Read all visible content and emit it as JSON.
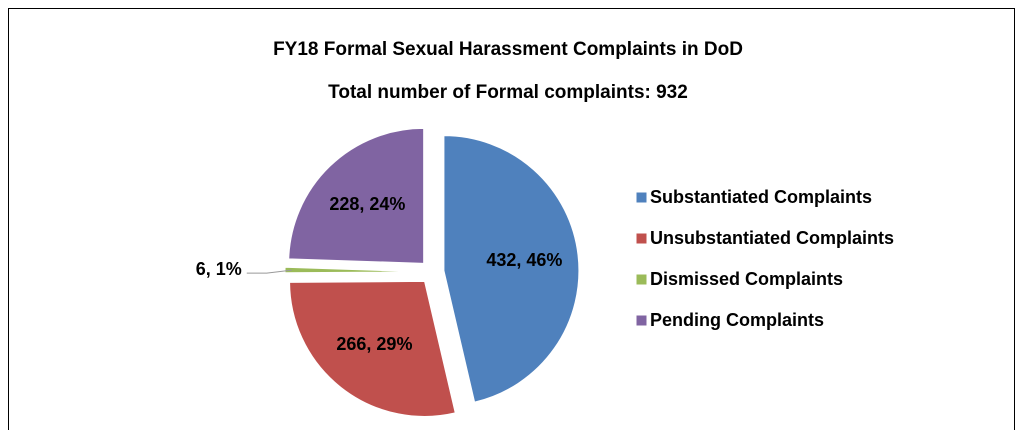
{
  "chart_data": {
    "type": "pie",
    "title": "FY18 Formal Sexual Harassment Complaints in DoD",
    "subtitle": "Total number of Formal complaints: 932",
    "categories": [
      "Substantiated Complaints",
      "Unsubstantiated Complaints",
      "Dismissed Complaints",
      "Pending Complaints"
    ],
    "values": [
      432,
      266,
      6,
      228
    ],
    "value_labels": [
      "432, 46%",
      "266, 29%",
      "6, 1%",
      "228, 24%"
    ],
    "colors": [
      "#4f81bd",
      "#c0504d",
      "#9bbb59",
      "#8064a2"
    ],
    "legend": "right"
  }
}
